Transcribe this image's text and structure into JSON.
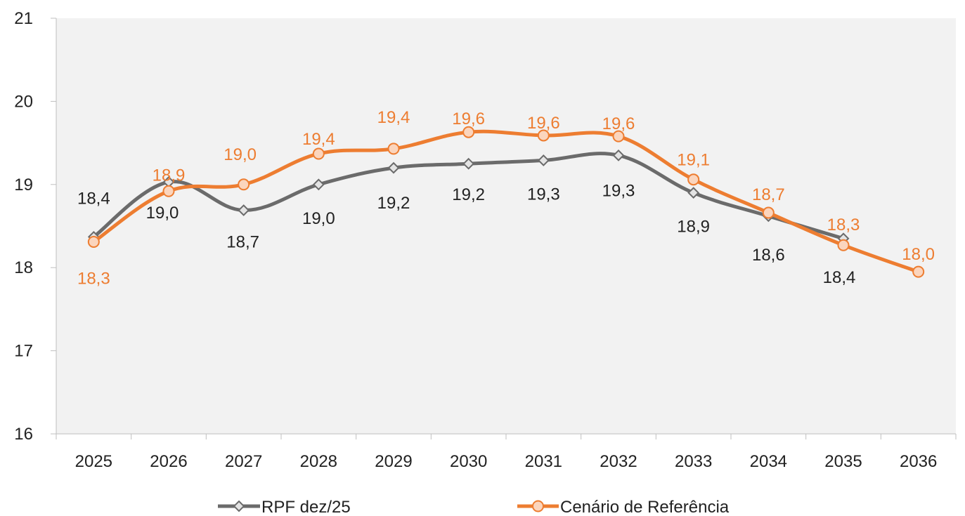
{
  "chart_data": {
    "type": "line",
    "categories": [
      "2025",
      "2026",
      "2027",
      "2028",
      "2029",
      "2030",
      "2031",
      "2032",
      "2033",
      "2034",
      "2035",
      "2036"
    ],
    "series": [
      {
        "name": "RPF dez/25",
        "color": "#6b6b6b",
        "marker": "diamond",
        "values": [
          18.37,
          19.03,
          18.69,
          19.0,
          19.2,
          19.25,
          19.29,
          19.35,
          18.9,
          18.62,
          18.35,
          null
        ],
        "labels": [
          "18,4",
          "19,0",
          "18,7",
          "19,0",
          "19,2",
          "19,2",
          "19,3",
          "19,3",
          "18,9",
          "18,6",
          "18,4",
          null
        ]
      },
      {
        "name": "Cenário de Referência",
        "color": "#ed7d31",
        "marker": "circle",
        "values": [
          18.31,
          18.92,
          19.0,
          19.37,
          19.43,
          19.63,
          19.59,
          19.58,
          19.06,
          18.66,
          18.27,
          17.95
        ],
        "labels": [
          "18,3",
          "18,9",
          "19,0",
          "19,4",
          "19,4",
          "19,6",
          "19,6",
          "19,6",
          "19,1",
          "18,7",
          "18,3",
          "18,0"
        ]
      }
    ],
    "ylim": [
      16,
      21
    ],
    "yticks": [
      "16",
      "17",
      "18",
      "19",
      "20",
      "21"
    ],
    "grid": false,
    "plot_background": "#f2f2f2",
    "legend_position": "bottom",
    "title": "",
    "xlabel": "",
    "ylabel": ""
  }
}
